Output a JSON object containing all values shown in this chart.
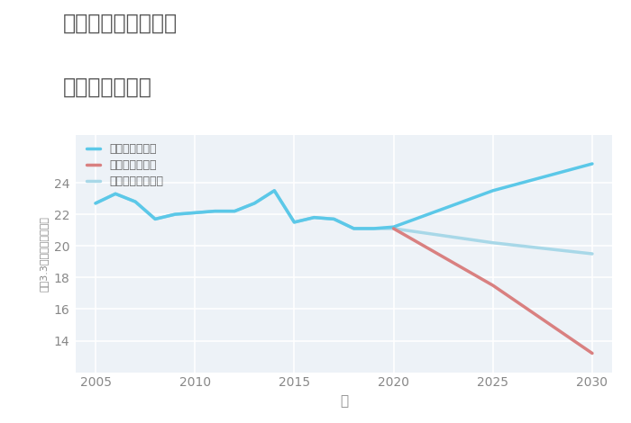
{
  "title_line1": "千葉県市原市米原の",
  "title_line2": "土地の価格推移",
  "xlabel": "年",
  "ylabel": "坪（3.3㎡）単価（万円）",
  "background_color": "#ffffff",
  "plot_bg_color": "#edf2f7",
  "grid_color": "#ffffff",
  "xlim": [
    2004,
    2031
  ],
  "ylim": [
    12,
    27
  ],
  "yticks": [
    14,
    16,
    18,
    20,
    22,
    24
  ],
  "xticks": [
    2005,
    2010,
    2015,
    2020,
    2025,
    2030
  ],
  "good_scenario": {
    "x": [
      2005,
      2006,
      2007,
      2008,
      2009,
      2010,
      2011,
      2012,
      2013,
      2014,
      2015,
      2016,
      2017,
      2018,
      2019,
      2020,
      2025,
      2030
    ],
    "y": [
      22.7,
      23.3,
      22.8,
      21.7,
      22.0,
      22.1,
      22.2,
      22.2,
      22.7,
      23.5,
      21.5,
      21.8,
      21.7,
      21.1,
      21.1,
      21.2,
      23.5,
      25.2
    ],
    "color": "#5bc8e8",
    "label": "グッドシナリオ",
    "linewidth": 2.5
  },
  "bad_scenario": {
    "x": [
      2020,
      2025,
      2030
    ],
    "y": [
      21.1,
      17.5,
      13.2
    ],
    "color": "#d98080",
    "label": "バッドシナリオ",
    "linewidth": 2.5
  },
  "normal_scenario": {
    "x": [
      2005,
      2006,
      2007,
      2008,
      2009,
      2010,
      2011,
      2012,
      2013,
      2014,
      2015,
      2016,
      2017,
      2018,
      2019,
      2020,
      2025,
      2030
    ],
    "y": [
      22.7,
      23.3,
      22.8,
      21.7,
      22.0,
      22.1,
      22.2,
      22.2,
      22.7,
      23.5,
      21.5,
      21.8,
      21.7,
      21.1,
      21.1,
      21.1,
      20.2,
      19.5
    ],
    "color": "#a8d8e8",
    "label": "ノーマルシナリオ",
    "linewidth": 2.5
  }
}
